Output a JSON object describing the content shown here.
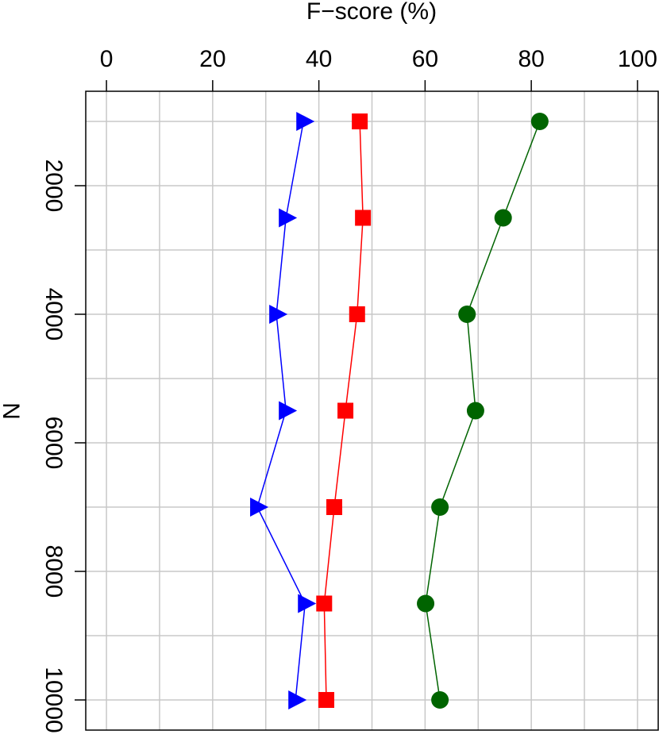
{
  "chart_data": {
    "type": "line",
    "x_label": "F−score (%)",
    "y_label": "N",
    "xlim": [
      -3.9,
      103.9
    ],
    "xticks": [
      0,
      20,
      40,
      60,
      80,
      100
    ],
    "xminor": [
      10,
      30,
      50,
      70,
      90
    ],
    "ylim": [
      531,
      10469
    ],
    "yticks": [
      2000,
      4000,
      6000,
      8000,
      10000
    ],
    "yminor": [
      1000,
      3000,
      5000,
      7000,
      9000
    ],
    "grid": true,
    "y": [
      1000,
      2500,
      4000,
      5500,
      7000,
      8500,
      10000
    ],
    "series": [
      {
        "color": "#006400",
        "marker": "circle",
        "values": [
          81.6,
          74.7,
          67.9,
          69.5,
          62.8,
          60.1,
          62.8
        ]
      },
      {
        "color": "#ff0000",
        "marker": "square",
        "values": [
          47.7,
          48.3,
          47.2,
          45.0,
          42.9,
          41.0,
          41.4
        ]
      },
      {
        "color": "#0000ff",
        "marker": "triangle",
        "values": [
          37.1,
          33.8,
          32.0,
          33.8,
          28.4,
          37.4,
          35.6
        ]
      }
    ]
  }
}
